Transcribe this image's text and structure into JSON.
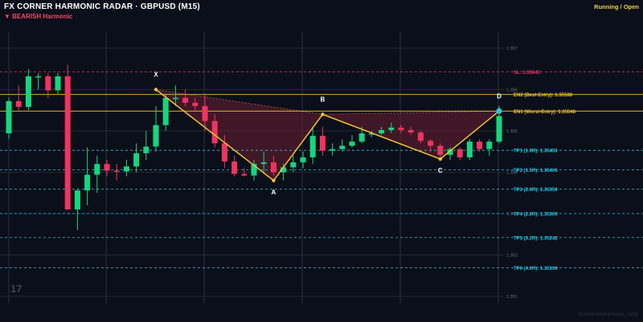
{
  "header": {
    "title": "FX CORNER HARMONIC RADAR  ·  GBPUSD (M15)",
    "subtitle": "▼ BEARISH  Harmonic",
    "status": "Running / Open"
  },
  "watermark": "17",
  "credit": "fxcorner.net/harmonic_radar",
  "colors": {
    "background": "#0b0f19",
    "bull": "#15d67e",
    "bear": "#f0345f",
    "pattern": "#f4c430",
    "sl": "#f0345f",
    "entry": "#f4c430",
    "tp": "#22c9e6",
    "fill": "#6b1f33"
  },
  "chart_data": {
    "type": "candlestick",
    "y_ticks": [
      "1.357",
      "1.356",
      "1.355",
      "1.354",
      "1.353",
      "1.352",
      "1.351"
    ],
    "candles": [
      {
        "o": 1.35494,
        "h": 1.3558,
        "l": 1.3548,
        "c": 1.35572
      },
      {
        "o": 1.35572,
        "h": 1.3561,
        "l": 1.3555,
        "c": 1.35558
      },
      {
        "o": 1.35558,
        "h": 1.3565,
        "l": 1.3555,
        "c": 1.35632
      },
      {
        "o": 1.35632,
        "h": 1.3564,
        "l": 1.356,
        "c": 1.35632
      },
      {
        "o": 1.35632,
        "h": 1.3564,
        "l": 1.3558,
        "c": 1.35598
      },
      {
        "o": 1.35598,
        "h": 1.3564,
        "l": 1.3559,
        "c": 1.35632
      },
      {
        "o": 1.35632,
        "h": 1.3566,
        "l": 1.3531,
        "c": 1.3531
      },
      {
        "o": 1.3531,
        "h": 1.3536,
        "l": 1.3526,
        "c": 1.35356
      },
      {
        "o": 1.35356,
        "h": 1.3546,
        "l": 1.3532,
        "c": 1.35394
      },
      {
        "o": 1.35394,
        "h": 1.3544,
        "l": 1.3535,
        "c": 1.3542
      },
      {
        "o": 1.3542,
        "h": 1.3543,
        "l": 1.3539,
        "c": 1.35404
      },
      {
        "o": 1.35404,
        "h": 1.3542,
        "l": 1.3538,
        "c": 1.35402
      },
      {
        "o": 1.35402,
        "h": 1.3543,
        "l": 1.3539,
        "c": 1.35414
      },
      {
        "o": 1.35414,
        "h": 1.3547,
        "l": 1.354,
        "c": 1.35446
      },
      {
        "o": 1.35446,
        "h": 1.355,
        "l": 1.3543,
        "c": 1.35462
      },
      {
        "o": 1.35462,
        "h": 1.3556,
        "l": 1.3545,
        "c": 1.35514
      },
      {
        "o": 1.35514,
        "h": 1.3559,
        "l": 1.355,
        "c": 1.3558
      },
      {
        "o": 1.3558,
        "h": 1.3561,
        "l": 1.3556,
        "c": 1.3558
      },
      {
        "o": 1.3558,
        "h": 1.356,
        "l": 1.3556,
        "c": 1.35568
      },
      {
        "o": 1.35568,
        "h": 1.3558,
        "l": 1.3555,
        "c": 1.3556
      },
      {
        "o": 1.3556,
        "h": 1.3559,
        "l": 1.355,
        "c": 1.35524
      },
      {
        "o": 1.35524,
        "h": 1.3554,
        "l": 1.3546,
        "c": 1.3547
      },
      {
        "o": 1.3547,
        "h": 1.3549,
        "l": 1.3541,
        "c": 1.35426
      },
      {
        "o": 1.35426,
        "h": 1.3544,
        "l": 1.3539,
        "c": 1.35396
      },
      {
        "o": 1.35396,
        "h": 1.3541,
        "l": 1.3539,
        "c": 1.35392
      },
      {
        "o": 1.35392,
        "h": 1.3543,
        "l": 1.3538,
        "c": 1.3542
      },
      {
        "o": 1.3542,
        "h": 1.3545,
        "l": 1.354,
        "c": 1.35424
      },
      {
        "o": 1.35424,
        "h": 1.3544,
        "l": 1.3539,
        "c": 1.354
      },
      {
        "o": 1.354,
        "h": 1.3542,
        "l": 1.3538,
        "c": 1.35412
      },
      {
        "o": 1.35412,
        "h": 1.3544,
        "l": 1.354,
        "c": 1.35424
      },
      {
        "o": 1.35424,
        "h": 1.3545,
        "l": 1.3541,
        "c": 1.35436
      },
      {
        "o": 1.35436,
        "h": 1.3551,
        "l": 1.3542,
        "c": 1.35488
      },
      {
        "o": 1.35488,
        "h": 1.3551,
        "l": 1.3544,
        "c": 1.35452
      },
      {
        "o": 1.35452,
        "h": 1.3547,
        "l": 1.3544,
        "c": 1.35456
      },
      {
        "o": 1.35456,
        "h": 1.3548,
        "l": 1.3545,
        "c": 1.35464
      },
      {
        "o": 1.35464,
        "h": 1.3549,
        "l": 1.3546,
        "c": 1.35474
      },
      {
        "o": 1.35474,
        "h": 1.3551,
        "l": 1.3547,
        "c": 1.35494
      },
      {
        "o": 1.35494,
        "h": 1.355,
        "l": 1.35485,
        "c": 1.35494
      },
      {
        "o": 1.35494,
        "h": 1.3551,
        "l": 1.3549,
        "c": 1.35502
      },
      {
        "o": 1.35502,
        "h": 1.3552,
        "l": 1.35495,
        "c": 1.35508
      },
      {
        "o": 1.35508,
        "h": 1.35515,
        "l": 1.35495,
        "c": 1.35502
      },
      {
        "o": 1.35502,
        "h": 1.3551,
        "l": 1.3549,
        "c": 1.35496
      },
      {
        "o": 1.35496,
        "h": 1.355,
        "l": 1.3547,
        "c": 1.35476
      },
      {
        "o": 1.35476,
        "h": 1.3548,
        "l": 1.3545,
        "c": 1.35464
      },
      {
        "o": 1.35464,
        "h": 1.3547,
        "l": 1.3543,
        "c": 1.35442
      },
      {
        "o": 1.35442,
        "h": 1.3546,
        "l": 1.3543,
        "c": 1.35456
      },
      {
        "o": 1.35456,
        "h": 1.3546,
        "l": 1.3543,
        "c": 1.35436
      },
      {
        "o": 1.35436,
        "h": 1.3548,
        "l": 1.3543,
        "c": 1.35474
      },
      {
        "o": 1.35474,
        "h": 1.3548,
        "l": 1.3545,
        "c": 1.35456
      },
      {
        "o": 1.35456,
        "h": 1.3548,
        "l": 1.3544,
        "c": 1.35474
      },
      {
        "o": 1.35474,
        "h": 1.3556,
        "l": 1.3547,
        "c": 1.35536
      }
    ],
    "pattern_points": [
      {
        "label": "X",
        "index": 15,
        "price": 1.356
      },
      {
        "label": "A",
        "index": 27,
        "price": 1.3538
      },
      {
        "label": "B",
        "index": 32,
        "price": 1.3554
      },
      {
        "label": "C",
        "index": 44,
        "price": 1.35432
      },
      {
        "label": "D",
        "index": 50,
        "price": 1.35548
      }
    ],
    "levels": [
      {
        "label": "SL: 1.35643",
        "price": 1.35643,
        "kind": "sl"
      },
      {
        "label": "EN2 (Best-Entry): 1.35588",
        "price": 1.35588,
        "kind": "entry"
      },
      {
        "label": "EN1 (Worst-Entry): 1.35548",
        "price": 1.35548,
        "kind": "entry"
      },
      {
        "label": "TP1 (1.0R): 1.35453",
        "price": 1.35453,
        "kind": "tp"
      },
      {
        "label": "TP2 (1.5R): 1.35406",
        "price": 1.35406,
        "kind": "tp"
      },
      {
        "label": "TP3 (2.0R): 1.35359",
        "price": 1.35359,
        "kind": "tp"
      },
      {
        "label": "TP4 (2.6R): 1.35300",
        "price": 1.353,
        "kind": "tp"
      },
      {
        "label": "TP5 (3.2R): 1.35242",
        "price": 1.35242,
        "kind": "tp"
      },
      {
        "label": "TP6 (4.0R): 1.35169",
        "price": 1.35169,
        "kind": "tp"
      }
    ]
  }
}
